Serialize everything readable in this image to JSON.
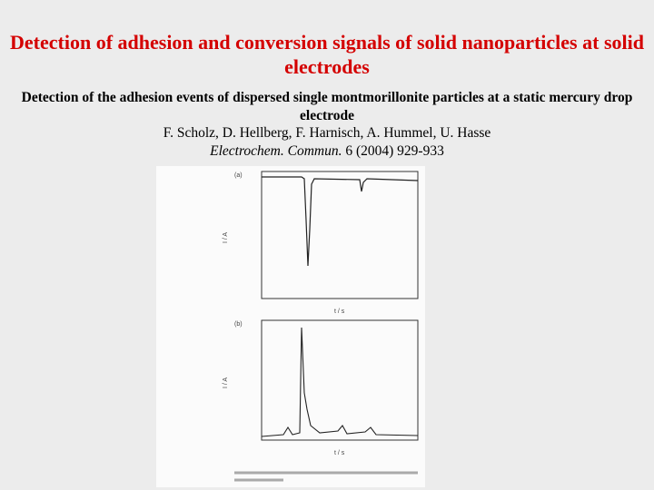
{
  "header": {
    "title": "Detection of adhesion and conversion signals of solid nanoparticles at solid electrodes"
  },
  "body": {
    "subtitle": "Detection of the adhesion events of dispersed single montmorillonite particles at a static mercury drop electrode",
    "authors": "F. Scholz, D. Hellberg, F. Harnisch, A. Hummel, U. Hasse",
    "journal": "Electrochem. Commun.",
    "reference": "6 (2004) 929-933"
  },
  "figure": {
    "panel_a": "(a)",
    "panel_b": "(b)",
    "y_label": "I / A",
    "x_label": "t / s"
  }
}
